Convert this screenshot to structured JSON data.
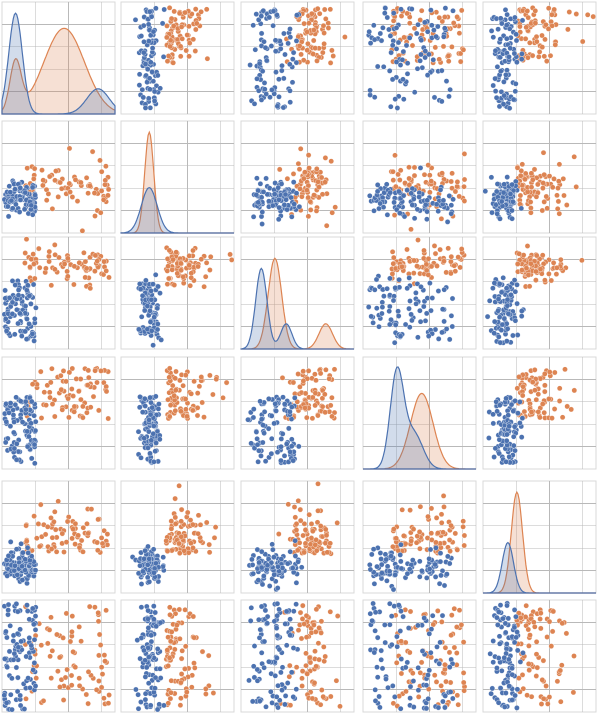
{
  "chart_data": {
    "type": "scatter",
    "subtype": "pair-plot",
    "rows": 6,
    "cols": 5,
    "diagonal": "kde",
    "grid": true,
    "legend": "none",
    "series": [
      {
        "color": "#4c72b0"
      },
      {
        "color": "#dd8452"
      }
    ]
  }
}
